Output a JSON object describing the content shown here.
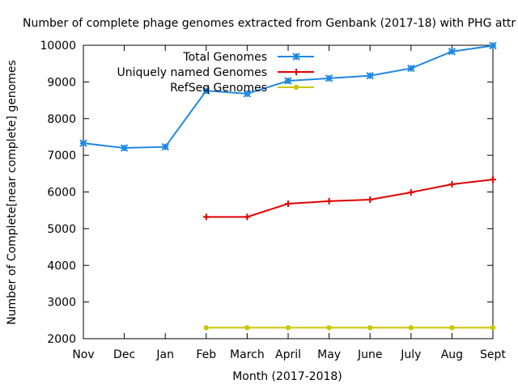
{
  "chart_data": {
    "type": "line",
    "title": "Number of complete phage genomes extracted from Genbank (2017-18) with PHG attr",
    "xlabel": "Month (2017-2018)",
    "ylabel": "Number of Complete[near complete] genomes",
    "categories": [
      "Nov",
      "Dec",
      "Jan",
      "Feb",
      "March",
      "April",
      "May",
      "June",
      "July",
      "Aug",
      "Sept"
    ],
    "ylim": [
      2000,
      10000
    ],
    "yticks": [
      2000,
      3000,
      4000,
      5000,
      6000,
      7000,
      8000,
      9000,
      10000
    ],
    "grid": false,
    "legend": "top-center",
    "series": [
      {
        "name": "Total Genomes",
        "color": "#1e88e5",
        "marker": "asterisk",
        "values": [
          7330,
          7200,
          7230,
          8760,
          8680,
          9030,
          9100,
          9170,
          9370,
          9830,
          9990
        ]
      },
      {
        "name": "Uniquely named Genomes",
        "color": "#e00000",
        "marker": "plus",
        "values": [
          null,
          null,
          null,
          5320,
          5320,
          5680,
          5750,
          5790,
          5990,
          6210,
          6340
        ]
      },
      {
        "name": "RefSeq Genomes",
        "color": "#c8c800",
        "marker": "dot",
        "values": [
          null,
          null,
          null,
          2300,
          2300,
          2300,
          2300,
          2300,
          2300,
          2300,
          2300
        ]
      }
    ]
  }
}
